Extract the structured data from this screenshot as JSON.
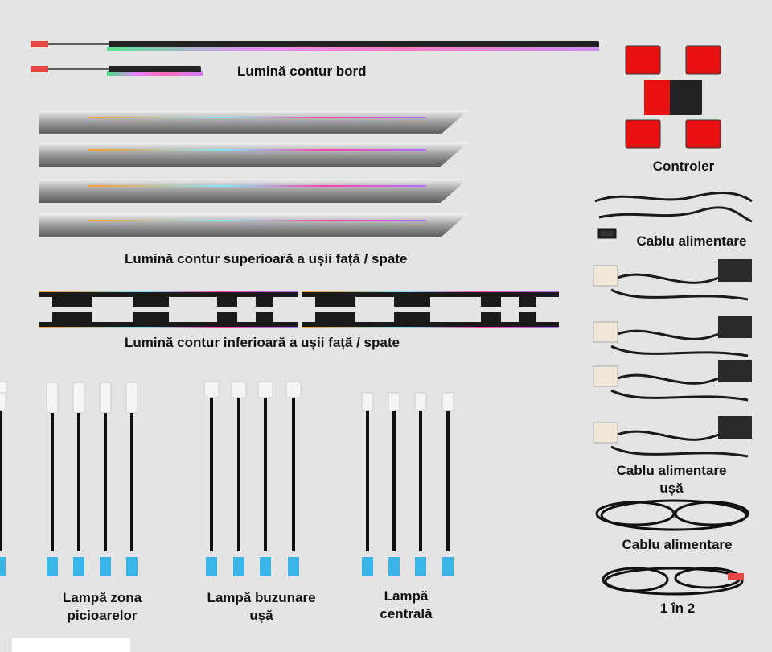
{
  "labels": {
    "dashboard": "Lumină contur bord",
    "door_upper": "Lumină contur superioară a ușii față / spate",
    "door_lower": "Lumină contur inferioară a ușii față / spate",
    "footwell_1": "Lampă zona",
    "footwell_2": "picioarelor",
    "pocket_1": "Lampă buzunare",
    "pocket_2": "ușă",
    "central_1": "Lampă",
    "central_2": "centrală",
    "controller": "Controler",
    "power_cable": "Cablu alimentare",
    "door_power_1": "Cablu alimentare",
    "door_power_2": "ușă",
    "power_cable_2": "Cablu alimentare",
    "splitter": "1 în 2"
  },
  "colors": {
    "background": "#e4e4e4",
    "connector_red": "#e81010",
    "connector_blue": "#3bb4e8",
    "cable": "#111111"
  }
}
